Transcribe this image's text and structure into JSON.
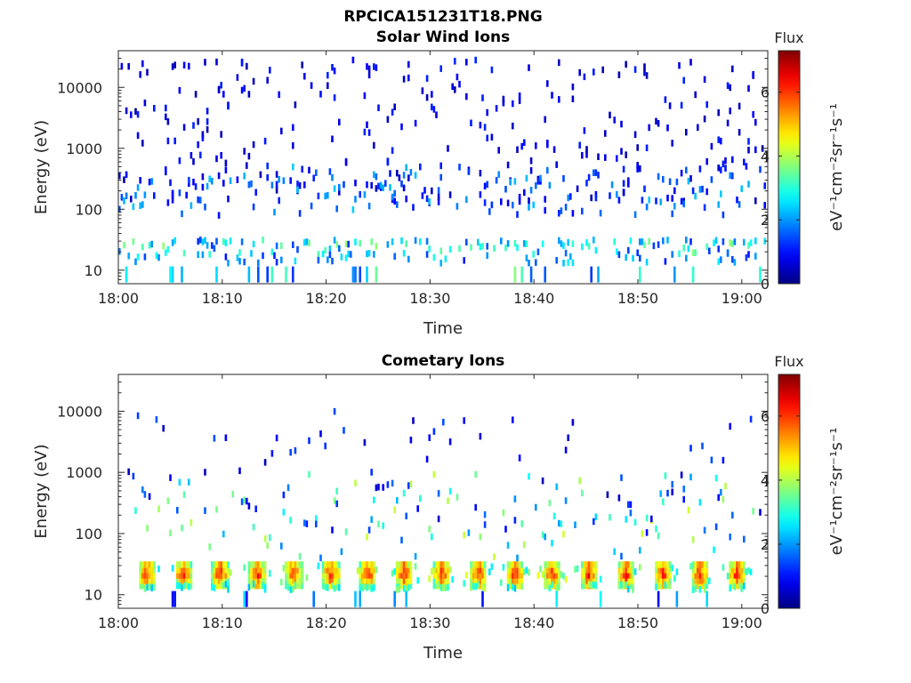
{
  "figure": {
    "title": "RPCICA151231T18.PNG"
  },
  "chart_data": [
    {
      "type": "heatmap",
      "title": "Solar Wind Ions",
      "xlabel": "Time",
      "ylabel": "Energy (eV)",
      "x_ticks": [
        "18:00",
        "18:10",
        "18:20",
        "18:30",
        "18:40",
        "18:50",
        "19:00"
      ],
      "x_range_minutes": [
        0,
        62.5
      ],
      "y_scale": "log",
      "y_ticks": [
        10,
        100,
        1000,
        10000
      ],
      "y_tick_labels": [
        "10",
        "100",
        "1000",
        "10000"
      ],
      "y_range": [
        6,
        40000
      ],
      "colorbar": {
        "title": "Flux",
        "label": "eV⁻¹cm⁻²sr⁻¹s⁻¹",
        "ticks": [
          "0",
          "2",
          "4",
          "6"
        ],
        "range": [
          0,
          7.3
        ],
        "colormap": "jet"
      },
      "grid": false
    },
    {
      "type": "heatmap",
      "title": "Cometary Ions",
      "xlabel": "Time",
      "ylabel": "Energy (eV)",
      "x_ticks": [
        "18:00",
        "18:10",
        "18:20",
        "18:30",
        "18:40",
        "18:50",
        "19:00"
      ],
      "x_range_minutes": [
        0,
        62.5
      ],
      "y_scale": "log",
      "y_ticks": [
        10,
        100,
        1000,
        10000
      ],
      "y_tick_labels": [
        "10",
        "100",
        "1000",
        "10000"
      ],
      "y_range": [
        6,
        40000
      ],
      "colorbar": {
        "title": "Flux",
        "label": "eV⁻¹cm⁻²sr⁻¹s⁻¹",
        "ticks": [
          "0",
          "2",
          "4",
          "6"
        ],
        "range": [
          0,
          7.3
        ],
        "colormap": "jet"
      },
      "grid": false
    }
  ]
}
